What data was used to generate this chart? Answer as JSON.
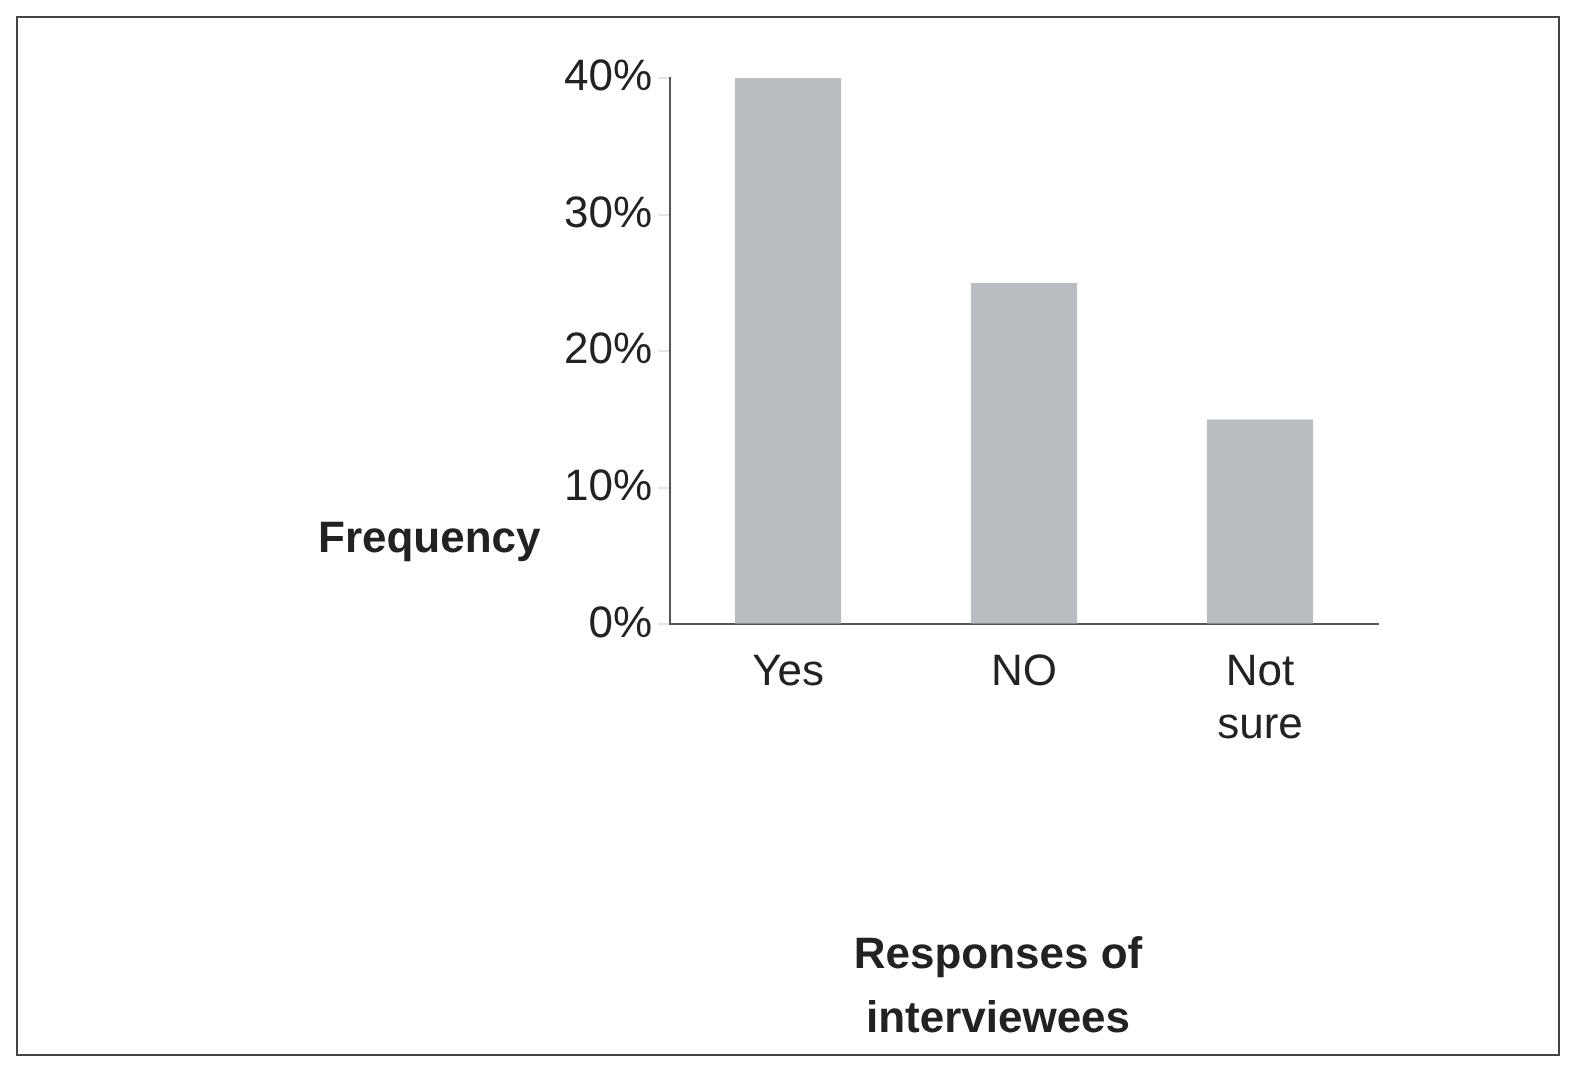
{
  "chart_data": {
    "type": "bar",
    "xlabel": "Responses of interviewees",
    "ylabel": "Frequency",
    "categories": [
      "Yes",
      "NO",
      "Not sure"
    ],
    "values": [
      40,
      25,
      15
    ],
    "color": "#b9bdc1",
    "ylim": [
      0,
      40
    ],
    "yticks": [
      {
        "value": 0,
        "label": "0%"
      },
      {
        "value": 10,
        "label": "10%"
      },
      {
        "value": 20,
        "label": "20%"
      },
      {
        "value": 30,
        "label": "30%"
      },
      {
        "value": 40,
        "label": "40%"
      }
    ],
    "grid": false,
    "legend": false
  }
}
